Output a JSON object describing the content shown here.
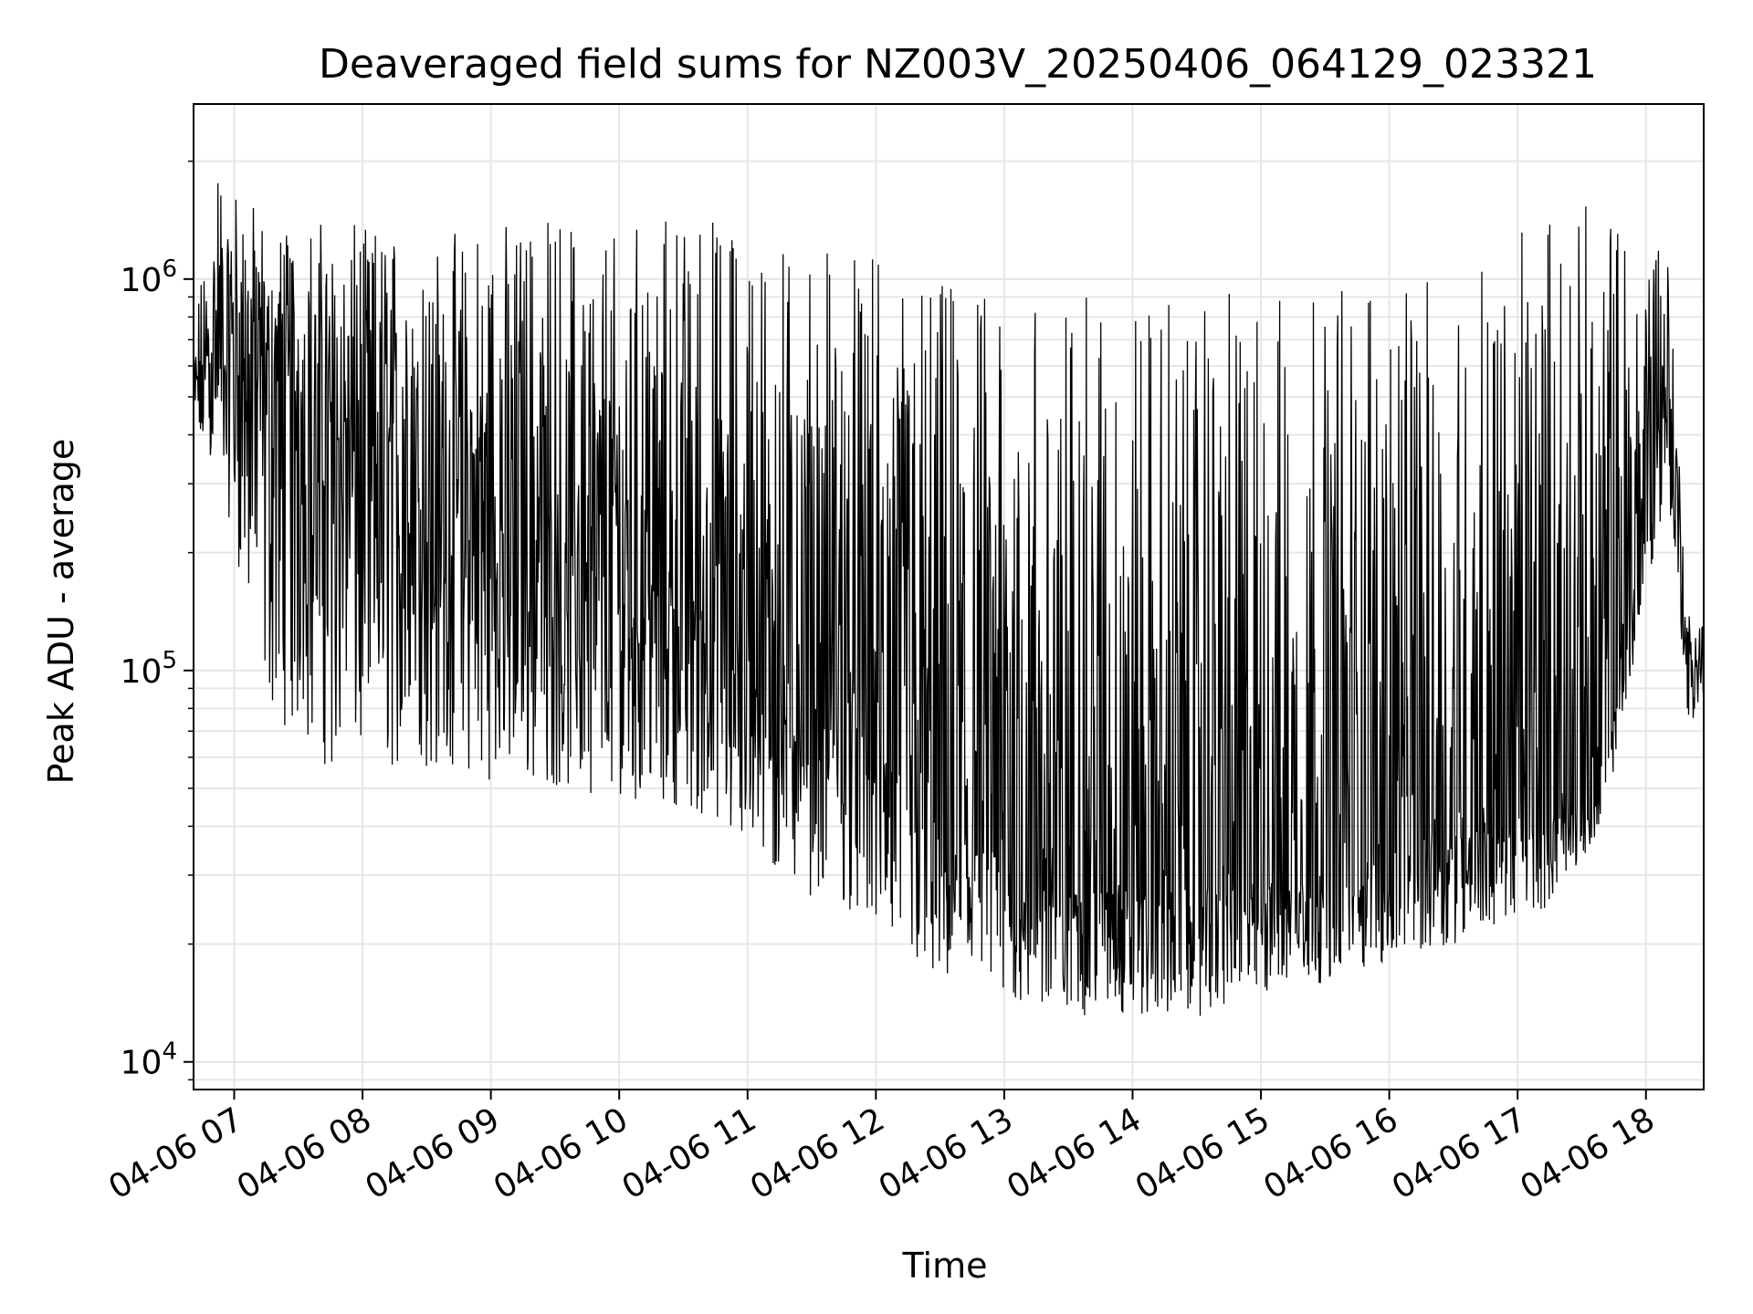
{
  "chart_data": {
    "type": "line",
    "title": "Deaveraged field sums for NZ003V_20250406_064129_023321",
    "xlabel": "Time",
    "ylabel": "Peak ADU - average",
    "yscale": "log",
    "ylim": [
      8500,
      2800000
    ],
    "xlim": [
      "04-06 06:41",
      "04-06 18:27"
    ],
    "x_ticks": [
      "04-06 07",
      "04-06 08",
      "04-06 09",
      "04-06 10",
      "04-06 11",
      "04-06 12",
      "04-06 13",
      "04-06 14",
      "04-06 15",
      "04-06 16",
      "04-06 17",
      "04-06 18"
    ],
    "y_ticks": [
      {
        "base": "10",
        "exp": "4",
        "value": 10000
      },
      {
        "base": "10",
        "exp": "5",
        "value": 100000
      },
      {
        "base": "10",
        "exp": "6",
        "value": 1000000
      }
    ],
    "grid": true,
    "line_color": "#000000",
    "series": [
      {
        "x": [
          "04-06 06:41",
          "04-06 06:52",
          "04-06 07:15",
          "04-06 07:45",
          "04-06 08:30",
          "04-06 09:30",
          "04-06 10:30",
          "04-06 11:15",
          "04-06 11:45",
          "04-06 12:30",
          "04-06 13:30",
          "04-06 14:30",
          "04-06 15:30",
          "04-06 16:30",
          "04-06 17:15",
          "04-06 17:40",
          "04-06 18:10",
          "04-06 18:20",
          "04-06 18:27"
        ],
        "low": [
          350000,
          350000,
          80000,
          55000,
          55000,
          50000,
          45000,
          28000,
          25000,
          15000,
          13000,
          13000,
          16000,
          20000,
          25000,
          40000,
          300000,
          70000,
          80000
        ],
        "median": [
          500000,
          700000,
          600000,
          400000,
          250000,
          180000,
          150000,
          90000,
          80000,
          40000,
          28000,
          28000,
          30000,
          40000,
          45000,
          50000,
          600000,
          90000,
          120000
        ],
        "high": [
          700000,
          2100000,
          1400000,
          1400000,
          1300000,
          1500000,
          1500000,
          1400000,
          1200000,
          1000000,
          900000,
          900000,
          1000000,
          1000000,
          1500000,
          1700000,
          1300000,
          140000,
          140000
        ]
      }
    ]
  }
}
